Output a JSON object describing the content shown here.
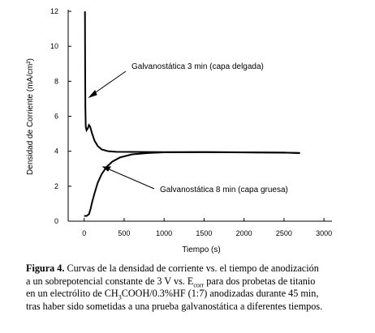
{
  "chart_data": {
    "type": "line",
    "x_label": "Tiempo (s)",
    "y_label": "Densidad de Corriente (mA/cm²)",
    "annotations": [
      "Galvanostática 3 min (capa delgada)",
      "Galvanostática 8 min (capa gruesa)"
    ],
    "xlim": [
      -200,
      3100
    ],
    "ylim": [
      0,
      12
    ],
    "xticks": [
      0,
      500,
      1000,
      1500,
      2000,
      2500,
      3000
    ],
    "yticks": [
      0,
      2,
      4,
      6,
      8,
      10,
      12
    ],
    "series": [
      {
        "color": "#000000",
        "x": [
          10,
          12,
          15,
          20,
          30,
          45,
          60,
          75,
          100,
          130,
          170,
          220,
          300,
          400,
          600,
          1000,
          1500,
          2000,
          2500,
          2700
        ],
        "values": [
          12,
          9,
          6.5,
          5.4,
          5.2,
          5.3,
          5.5,
          5.4,
          5.0,
          4.6,
          4.3,
          4.1,
          4.0,
          3.97,
          3.96,
          3.95,
          3.95,
          3.93,
          3.92,
          3.9
        ]
      },
      {
        "color": "#000000",
        "x": [
          0,
          30,
          60,
          80,
          100,
          130,
          170,
          220,
          280,
          350,
          450,
          600,
          800,
          1000,
          1500,
          2000,
          2500,
          2700
        ],
        "values": [
          0.3,
          0.3,
          0.4,
          0.7,
          1.1,
          1.6,
          2.2,
          2.7,
          3.1,
          3.4,
          3.65,
          3.82,
          3.9,
          3.94,
          3.95,
          3.94,
          3.92,
          3.9
        ]
      }
    ]
  },
  "caption": {
    "segments": [
      "Figura 4.",
      " Curvas de la densidad de corriente vs. el tiempo de anodización",
      "a un sobrepotencial constante  de 3 V vs. E",
      "corr",
      " para dos probetas de titanio",
      "en un electrólito de CH",
      "3",
      "COOH/0.3%HF (1:7) anodizadas durante 45 min,",
      "tras haber sido sometidas a una prueba galvanostática a diferentes tiempos."
    ]
  }
}
